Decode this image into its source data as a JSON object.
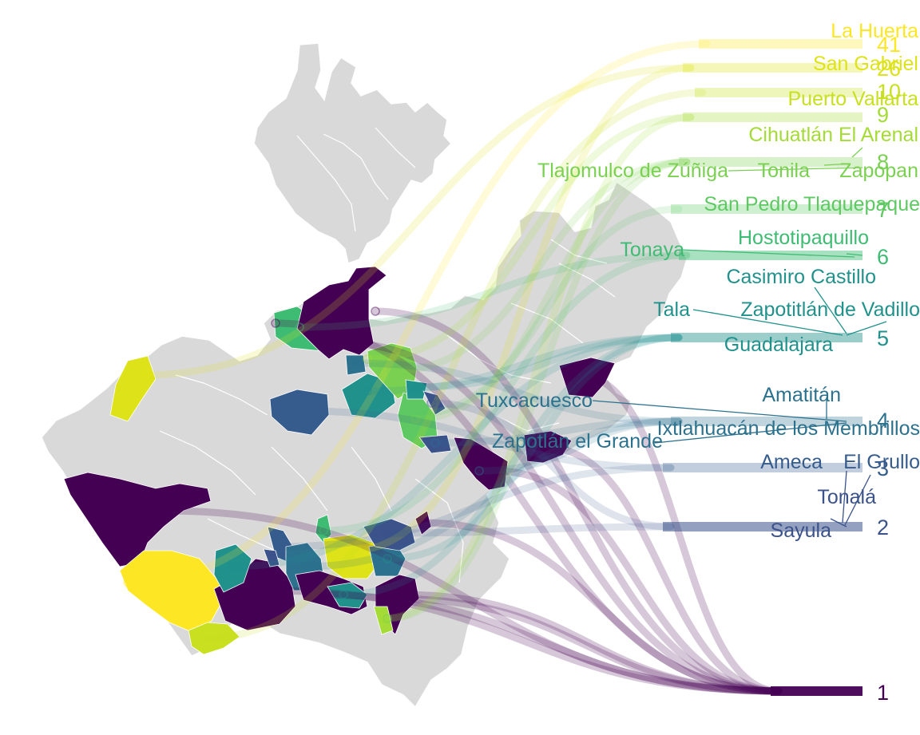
{
  "colors": {
    "c1": "#440154",
    "c2": "#3b528b",
    "c3": "#365c8d",
    "c4": "#2c728e",
    "c5": "#21918c",
    "c6": "#3fbc73",
    "c7": "#5ec962",
    "c8": "#7ad151",
    "c9": "#a5db36",
    "c10": "#c8e020",
    "c26": "#dde318",
    "c41": "#fde725",
    "land": "#d9d9d9"
  },
  "chart_data": {
    "type": "other",
    "title": "",
    "legend_values": [
      "41",
      "26",
      "10",
      "9",
      "8",
      "7",
      "6",
      "5",
      "4",
      "3",
      "2",
      "1"
    ],
    "municipalities": [
      {
        "name": "La Huerta",
        "value": 41
      },
      {
        "name": "San Gabriel",
        "value": 26
      },
      {
        "name": "Puerto Vallarta",
        "value": 10
      },
      {
        "name": "Cihuatlán",
        "value": 9
      },
      {
        "name": "El Arenal",
        "value": 9
      },
      {
        "name": "Tlajomulco de Zúñiga",
        "value": 8
      },
      {
        "name": "Tonila",
        "value": 8
      },
      {
        "name": "Zapopan",
        "value": 8
      },
      {
        "name": "San Pedro Tlaquepaque",
        "value": 7
      },
      {
        "name": "Hostotipaquillo",
        "value": 6
      },
      {
        "name": "Tonaya",
        "value": 6
      },
      {
        "name": "Casimiro Castillo",
        "value": 5
      },
      {
        "name": "Tala",
        "value": 5
      },
      {
        "name": "Zapotitlán de Vadillo",
        "value": 5
      },
      {
        "name": "Guadalajara",
        "value": 5
      },
      {
        "name": "Amatitán",
        "value": 4
      },
      {
        "name": "Tuxcacuesco",
        "value": 4
      },
      {
        "name": "Ixtlahuacán de los Membrillos",
        "value": 4
      },
      {
        "name": "Zapotlán el Grande",
        "value": 4
      },
      {
        "name": "Ameca",
        "value": 3
      },
      {
        "name": "El Grullo",
        "value": 3
      },
      {
        "name": "Tonalá",
        "value": 2
      },
      {
        "name": "Sayula",
        "value": 2
      }
    ]
  }
}
